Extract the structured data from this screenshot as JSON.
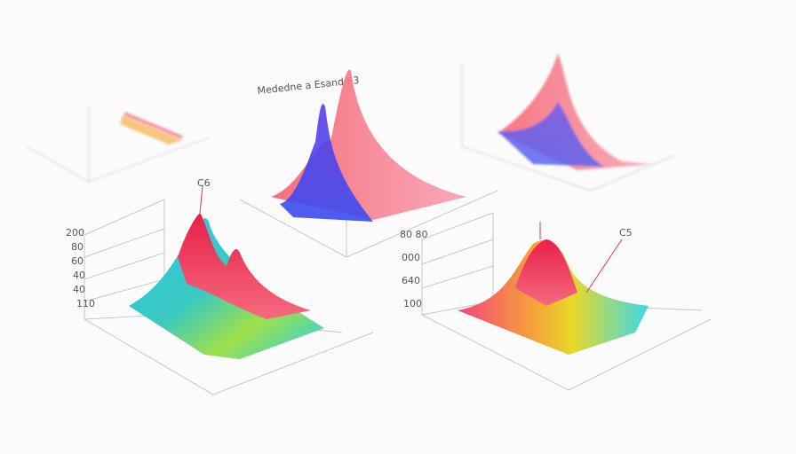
{
  "charts": [
    {
      "annotation": "C6",
      "axis_labels": [
        "200",
        "80",
        "60",
        "40",
        "40",
        "110"
      ]
    },
    {
      "annotation": "C5",
      "axis_labels": [
        "80 80",
        "000",
        "640",
        "100"
      ]
    }
  ],
  "top_chart": {
    "title": "Mededne a Esand  E3"
  }
}
